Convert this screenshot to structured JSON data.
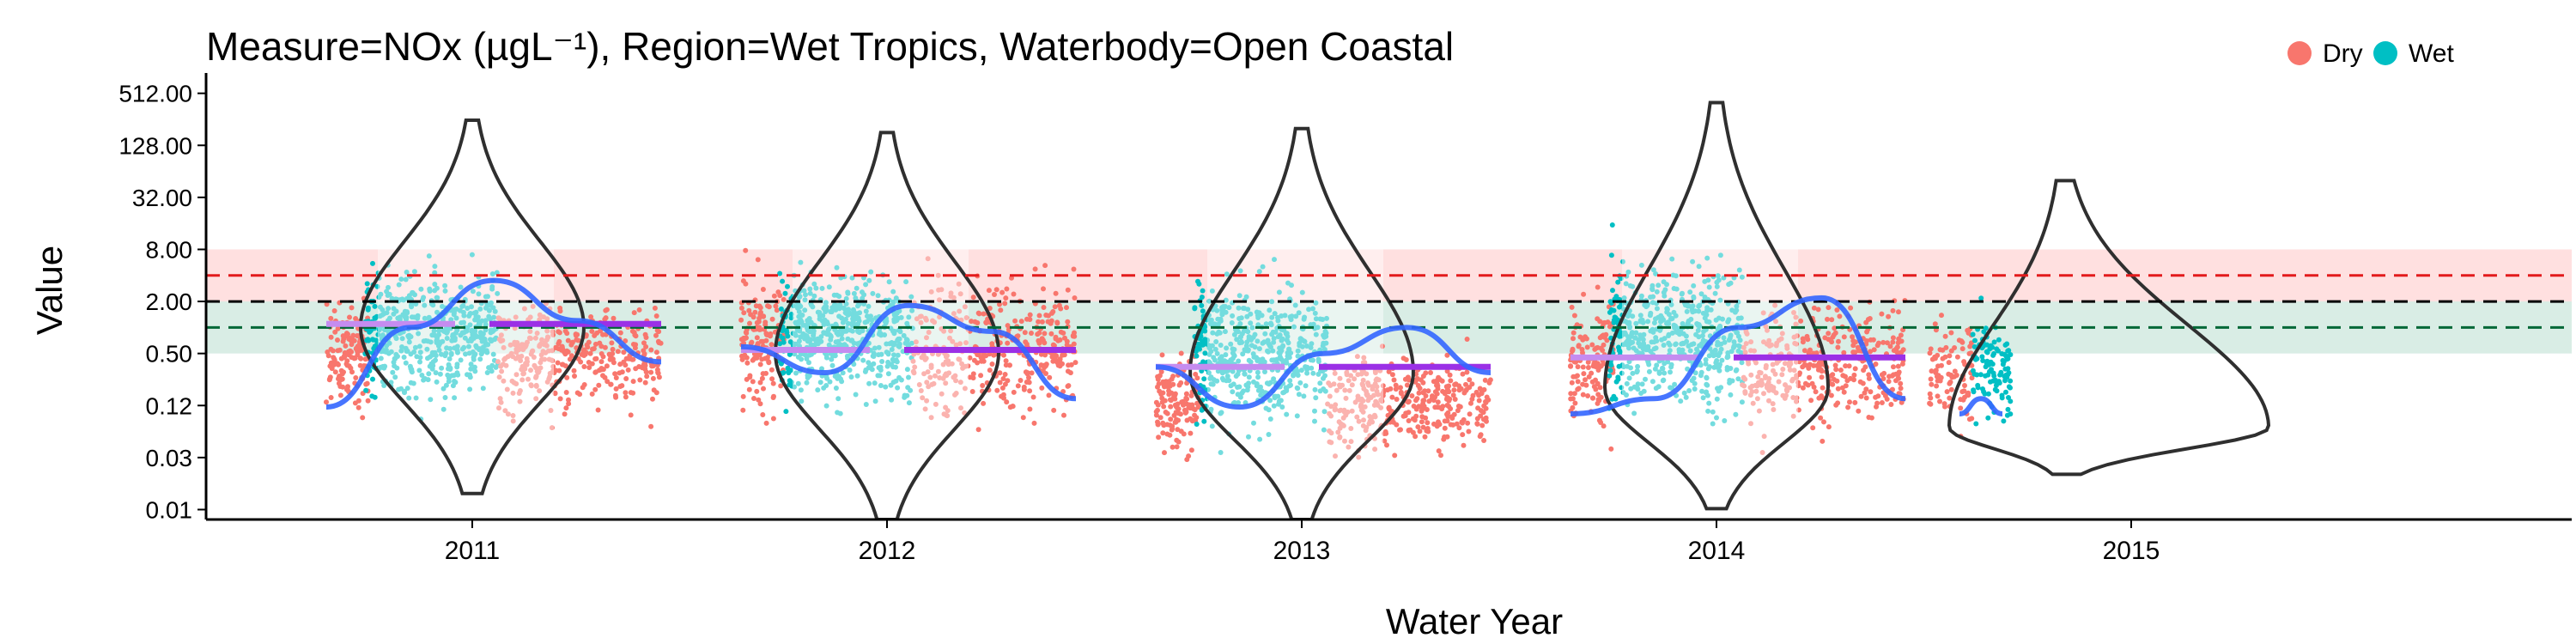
{
  "chart_data": {
    "type": "scatter",
    "title": "Measure=NOx (µgL⁻¹), Region=Wet Tropics, Waterbody=Open Coastal",
    "xlabel": "Water Year",
    "ylabel": "Value",
    "y_scale": "log2",
    "ylim": [
      0.006,
      700
    ],
    "y_ticks": [
      {
        "value": 0.0078125,
        "label": "0.01"
      },
      {
        "value": 0.03125,
        "label": "0.03"
      },
      {
        "value": 0.125,
        "label": "0.12"
      },
      {
        "value": 0.5,
        "label": "0.50"
      },
      {
        "value": 2,
        "label": "2.00"
      },
      {
        "value": 8,
        "label": "8.00"
      },
      {
        "value": 32,
        "label": "32.00"
      },
      {
        "value": 128,
        "label": "128.00"
      },
      {
        "value": 512,
        "label": "512.00"
      }
    ],
    "categories": [
      "2011",
      "2012",
      "2013",
      "2014",
      "2015"
    ],
    "legend": {
      "position": "top-right",
      "entries": [
        {
          "name": "Dry",
          "color": "#F8766D"
        },
        {
          "name": "Wet",
          "color": "#00BFC4"
        }
      ]
    },
    "reference_lines": [
      {
        "value": 4.0,
        "color": "#E31A1C",
        "style": "dashed",
        "band": [
          2.0,
          8.0
        ]
      },
      {
        "value": 2.0,
        "color": "#000000",
        "style": "dashed"
      },
      {
        "value": 1.0,
        "color": "#006837",
        "style": "dashed",
        "band": [
          0.5,
          2.0
        ]
      }
    ],
    "years": [
      {
        "year": "2011",
        "median_line": 1.1,
        "dry_range": [
          0.015,
          60
        ],
        "wet_range": [
          0.012,
          220
        ],
        "violin_range": [
          0.012,
          250
        ],
        "violin_mode": 1.0,
        "smoother": [
          [
            0.0,
            0.12
          ],
          [
            0.25,
            1.0
          ],
          [
            0.5,
            3.5
          ],
          [
            0.75,
            1.2
          ],
          [
            1.0,
            0.4
          ]
        ]
      },
      {
        "year": "2012",
        "median_line": 0.55,
        "dry_range": [
          0.006,
          220
        ],
        "wet_range": [
          0.012,
          220
        ],
        "violin_range": [
          0.006,
          180
        ],
        "violin_mode": 0.5,
        "smoother": [
          [
            0.0,
            0.6
          ],
          [
            0.25,
            0.3
          ],
          [
            0.5,
            1.8
          ],
          [
            0.75,
            0.9
          ],
          [
            1.0,
            0.15
          ]
        ]
      },
      {
        "year": "2013",
        "median_line": 0.35,
        "dry_range": [
          0.005,
          15
        ],
        "wet_range": [
          0.005,
          200
        ],
        "violin_range": [
          0.006,
          200
        ],
        "violin_mode": 0.3,
        "smoother": [
          [
            0.0,
            0.35
          ],
          [
            0.25,
            0.12
          ],
          [
            0.5,
            0.5
          ],
          [
            0.75,
            1.0
          ],
          [
            1.0,
            0.3
          ]
        ]
      },
      {
        "year": "2014",
        "median_line": 0.45,
        "dry_range": [
          0.006,
          100
        ],
        "wet_range": [
          0.006,
          400
        ],
        "violin_range": [
          0.008,
          400
        ],
        "violin_mode": 0.2,
        "smoother": [
          [
            0.0,
            0.1
          ],
          [
            0.25,
            0.15
          ],
          [
            0.5,
            1.0
          ],
          [
            0.75,
            2.2
          ],
          [
            1.0,
            0.15
          ]
        ]
      },
      {
        "year": "2015",
        "median_line": 0.1,
        "dry_range": [
          0.015,
          30
        ],
        "wet_range": [
          0.012,
          40
        ],
        "violin_range": [
          0.02,
          50
        ],
        "violin_mode": 0.07,
        "smoother": [
          [
            0.0,
            0.1
          ],
          [
            0.5,
            0.15
          ],
          [
            1.0,
            0.1
          ]
        ]
      }
    ]
  }
}
